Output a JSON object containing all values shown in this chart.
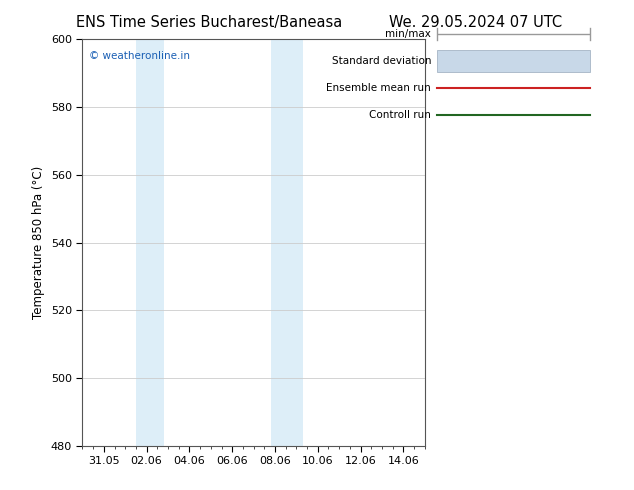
{
  "title_left": "ENS Time Series Bucharest/Baneasa",
  "title_right": "We. 29.05.2024 07 UTC",
  "ylabel": "Temperature 850 hPa (°C)",
  "ylim": [
    480,
    600
  ],
  "yticks": [
    480,
    500,
    520,
    540,
    560,
    580,
    600
  ],
  "xtick_labels": [
    "31.05",
    "02.06",
    "04.06",
    "06.06",
    "08.06",
    "10.06",
    "12.06",
    "14.06"
  ],
  "xtick_positions": [
    1,
    3,
    5,
    7,
    9,
    11,
    13,
    15
  ],
  "xlim": [
    0,
    16
  ],
  "shaded_bands": [
    {
      "x_start": 2.5,
      "x_end": 3.0,
      "color": "#ddeef8"
    },
    {
      "x_start": 3.0,
      "x_end": 3.8,
      "color": "#ddeef8"
    },
    {
      "x_start": 8.8,
      "x_end": 9.5,
      "color": "#ddeef8"
    },
    {
      "x_start": 9.5,
      "x_end": 10.3,
      "color": "#ddeef8"
    }
  ],
  "watermark": "© weatheronline.in",
  "watermark_color": "#1a5fb4",
  "legend_labels": [
    "min/max",
    "Standard deviation",
    "Ensemble mean run",
    "Controll run"
  ],
  "legend_line_colors": [
    "#999999",
    "#bbccdd",
    "#cc2222",
    "#226622"
  ],
  "background_color": "#ffffff",
  "plot_bg_color": "#ffffff",
  "grid_color": "#cccccc",
  "title_fontsize": 10.5,
  "tick_fontsize": 8,
  "label_fontsize": 8.5
}
